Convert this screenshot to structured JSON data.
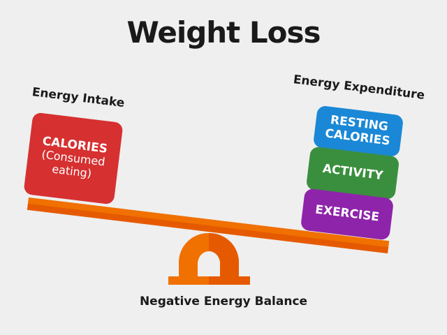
{
  "title": "Weight Loss",
  "intake": {
    "label": "Energy Intake",
    "block": {
      "line1": "CALORIES",
      "line2": "(Consumed",
      "line3": "eating)"
    }
  },
  "expenditure": {
    "label": "Energy Expenditure",
    "blocks": [
      "RESTING CALORIES",
      "ACTIVITY",
      "EXERCISE"
    ]
  },
  "footer": "Negative Energy Balance",
  "colors": {
    "calories": "#d63031",
    "resting": "#1a88d6",
    "activity": "#3a8f3e",
    "exercise": "#8e24aa",
    "beam": "#f07000",
    "beam_dark": "#e55a00"
  }
}
